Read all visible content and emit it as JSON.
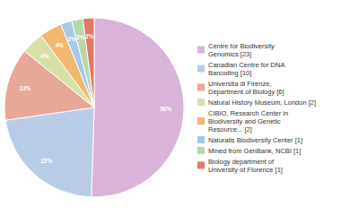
{
  "chart_data": {
    "type": "pie",
    "categories": [
      "Centre for Biodiversity\nGenomics [23]",
      "Canadian Centre for DNA\nBarcoding [10]",
      "Universita di Firenze,\nDepartment of Biology [6]",
      "Natural History Museum, London [2]",
      "CIBIO, Research Center in\nBiodiversity and Genetic\nResource... [2]",
      "Naturalis Biodiversity Center [1]",
      "Mined from GenBank, NCBI [1]",
      "Biology department of\nUniversity of Florence [1]"
    ],
    "values": [
      50,
      22,
      13,
      4,
      4,
      2,
      2,
      2
    ],
    "value_labels": [
      "50%",
      "22%",
      "13%",
      "4%",
      "4%",
      "2%",
      "2%",
      "2%"
    ],
    "colors": [
      "#d9b3d9",
      "#b8cce8",
      "#e8a898",
      "#d8e0a8",
      "#f0b870",
      "#a8c8e8",
      "#b8d8a8",
      "#e07868"
    ],
    "data_labels": true
  }
}
